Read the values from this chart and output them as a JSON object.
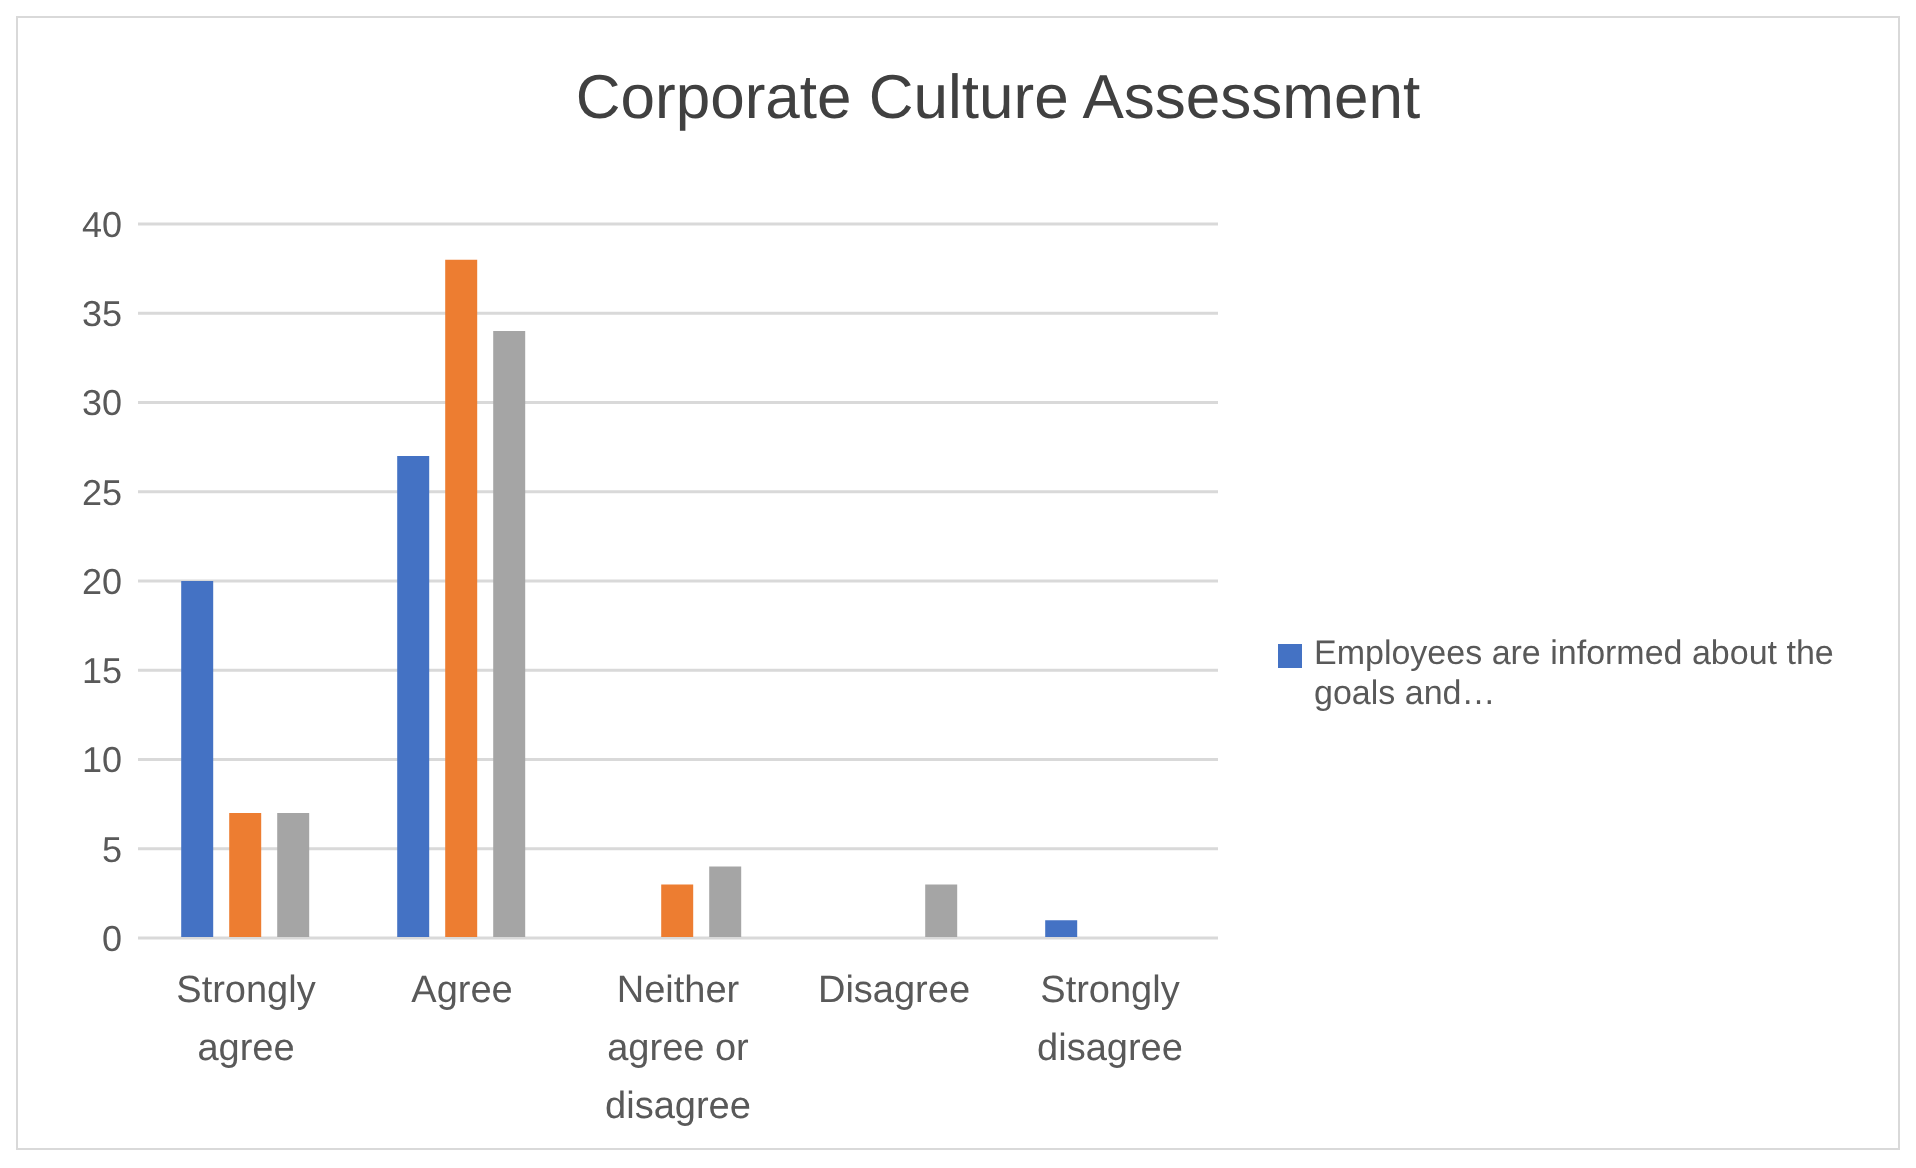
{
  "chart_data": {
    "type": "bar",
    "title": "Corporate Culture Assessment",
    "categories": [
      "Strongly agree",
      "Agree",
      "Neither agree or disagree",
      "Disagree",
      "Strongly disagree"
    ],
    "series": [
      {
        "name": "Employees are informed about the goals and…",
        "color": "#4472c4",
        "values": [
          20,
          27,
          0,
          0,
          1
        ]
      },
      {
        "color": "#ed7d31",
        "values": [
          7,
          38,
          3,
          0,
          0
        ]
      },
      {
        "color": "#a5a5a5",
        "values": [
          7,
          34,
          4,
          3,
          0
        ]
      }
    ],
    "ylim": [
      0,
      40
    ],
    "yticks": [
      0,
      5,
      10,
      15,
      20,
      25,
      30,
      35,
      40
    ],
    "grid": "y",
    "legend": "right"
  }
}
